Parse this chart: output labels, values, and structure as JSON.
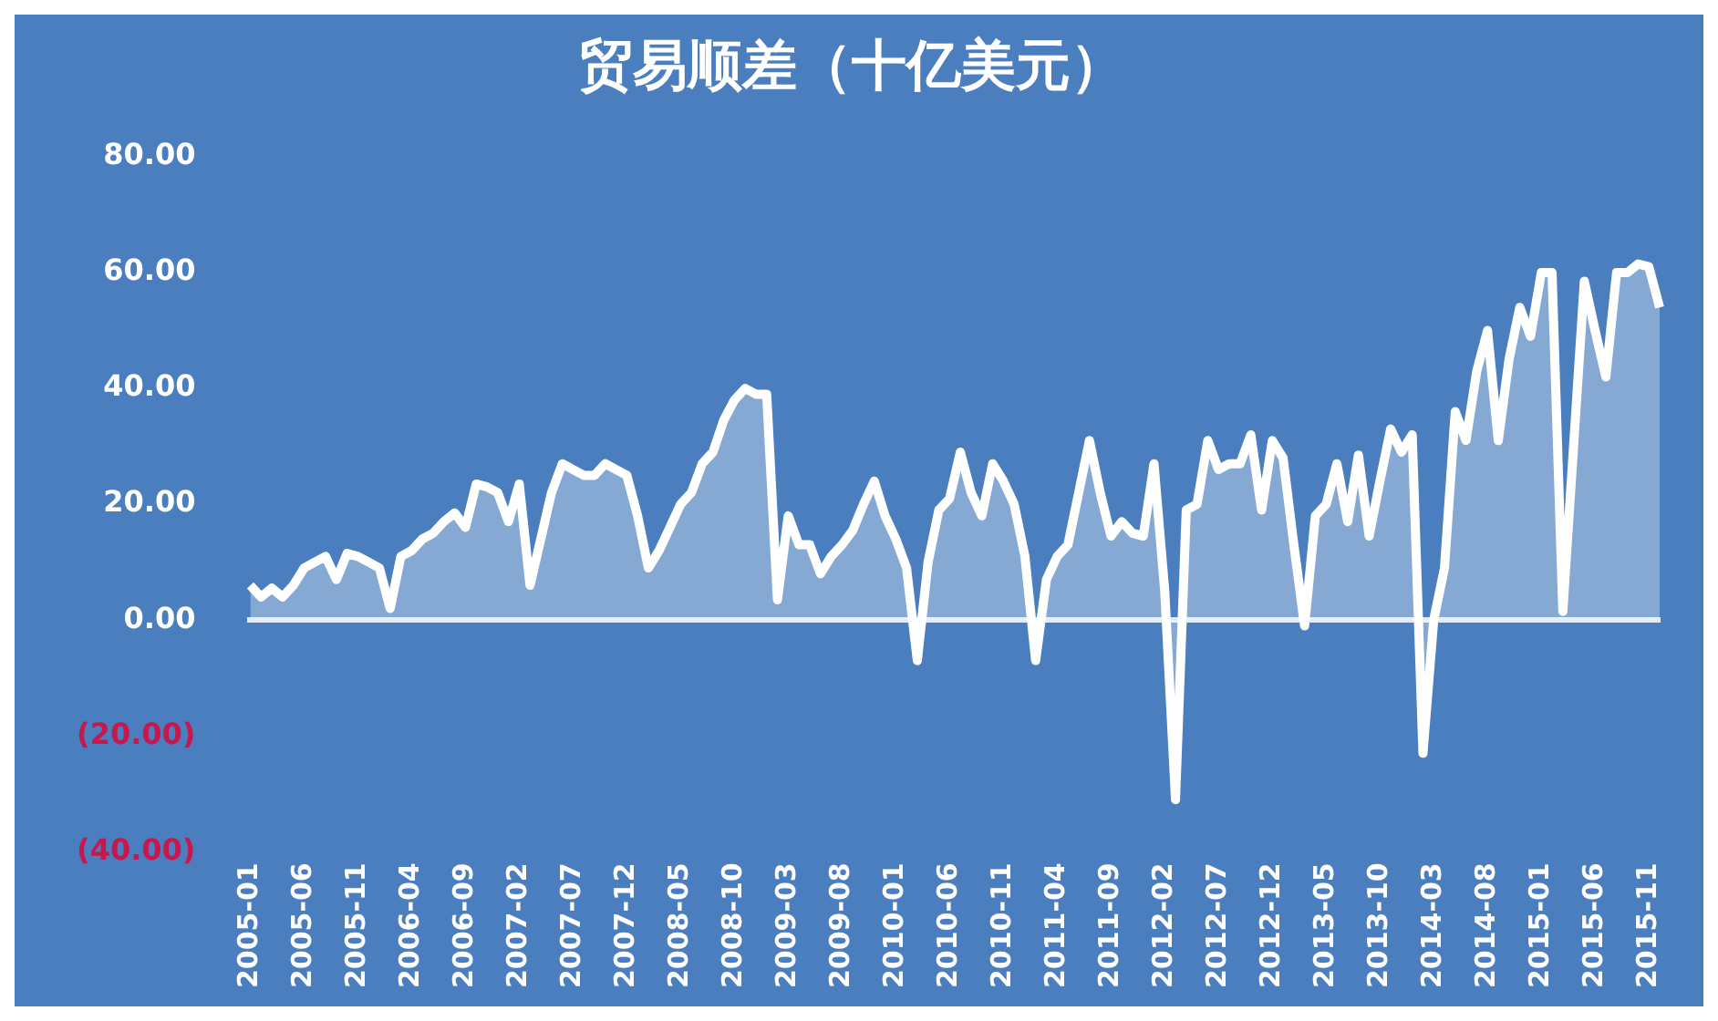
{
  "chart_data": {
    "type": "area",
    "title": "贸易顺差（十亿美元）",
    "categories": [
      "2005-01",
      null,
      null,
      null,
      null,
      "2005-06",
      null,
      null,
      null,
      null,
      "2005-11",
      null,
      null,
      null,
      null,
      "2006-04",
      null,
      null,
      null,
      null,
      "2006-09",
      null,
      null,
      null,
      null,
      "2007-02",
      null,
      null,
      null,
      null,
      "2007-07",
      null,
      null,
      null,
      null,
      "2007-12",
      null,
      null,
      null,
      null,
      "2008-05",
      null,
      null,
      null,
      null,
      "2008-10",
      null,
      null,
      null,
      null,
      "2009-03",
      null,
      null,
      null,
      null,
      "2009-08",
      null,
      null,
      null,
      null,
      "2010-01",
      null,
      null,
      null,
      null,
      "2010-06",
      null,
      null,
      null,
      null,
      "2010-11",
      null,
      null,
      null,
      null,
      "2011-04",
      null,
      null,
      null,
      null,
      "2011-09",
      null,
      null,
      null,
      null,
      "2012-02",
      null,
      null,
      null,
      null,
      "2012-07",
      null,
      null,
      null,
      null,
      "2012-12",
      null,
      null,
      null,
      null,
      "2013-05",
      null,
      null,
      null,
      null,
      "2013-10",
      null,
      null,
      null,
      null,
      "2014-03",
      null,
      null,
      null,
      null,
      "2014-08",
      null,
      null,
      null,
      null,
      "2015-01",
      null,
      null,
      null,
      null,
      "2015-06",
      null,
      null,
      null,
      null,
      "2015-11",
      null
    ],
    "series": [
      {
        "color": "#ffffff",
        "values": [
          6,
          4,
          5.5,
          4,
          6,
          9,
          10,
          11,
          7,
          11.5,
          11,
          10,
          9,
          2,
          11,
          12,
          14,
          15,
          17,
          18.5,
          16,
          23.5,
          23,
          22,
          17,
          23.5,
          6,
          14,
          22,
          27,
          26,
          25,
          25,
          27,
          26,
          25,
          18,
          9,
          12,
          16,
          20,
          22,
          27,
          29,
          34.5,
          38,
          40,
          39,
          39,
          3.5,
          18,
          13,
          13,
          8,
          11,
          13,
          15.5,
          20,
          24,
          18,
          14,
          9,
          -7,
          10,
          19,
          21,
          29,
          22,
          18,
          27,
          24,
          20,
          11,
          -7,
          7,
          11,
          13,
          22,
          31,
          22,
          14.5,
          17,
          15,
          14.5,
          27,
          5,
          -31,
          19,
          20,
          31,
          26,
          27,
          27,
          32,
          19,
          31,
          28,
          13,
          -1,
          18,
          20,
          27,
          17,
          28.5,
          14.5,
          24,
          33,
          29,
          32,
          -23,
          0,
          9,
          36,
          31,
          43,
          50,
          31,
          45,
          54,
          49,
          60,
          60,
          1.5,
          30,
          58.5,
          50,
          42,
          60,
          60,
          61.5,
          61,
          54
        ]
      }
    ],
    "ylim": [
      -40,
      80
    ],
    "yticks": [
      {
        "value": -40,
        "label": "(40.00)"
      },
      {
        "value": -20,
        "label": "(20.00)"
      },
      {
        "value": 0,
        "label": "0.00"
      },
      {
        "value": 20,
        "label": "20.00"
      },
      {
        "value": 40,
        "label": "40.00"
      },
      {
        "value": 60,
        "label": "60.00"
      },
      {
        "value": 80,
        "label": "80.00"
      }
    ]
  }
}
